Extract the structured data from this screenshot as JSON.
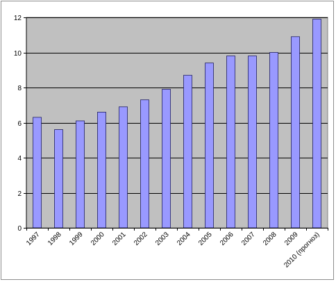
{
  "chart_data": {
    "type": "bar",
    "categories": [
      "1997",
      "1998",
      "1999",
      "2000",
      "2001",
      "2002",
      "2003",
      "2004",
      "2005",
      "2006",
      "2007",
      "2008",
      "2009",
      "2010 (прогноз)"
    ],
    "values": [
      6.3,
      5.6,
      6.1,
      6.6,
      6.9,
      7.3,
      7.9,
      8.7,
      9.4,
      9.8,
      9.8,
      10.0,
      10.9,
      11.9
    ],
    "y_ticks": [
      "0",
      "2",
      "4",
      "6",
      "8",
      "10",
      "12"
    ],
    "ylim": [
      0,
      12
    ],
    "title": "",
    "xlabel": "",
    "ylabel": "",
    "grid": "horizontal major gridlines",
    "legend": "none",
    "colors": {
      "plot_background": "#c0c0c0",
      "bar_fill": "#9999ff",
      "bar_stroke": "#1f1f5f",
      "gridline": "#000000"
    }
  }
}
